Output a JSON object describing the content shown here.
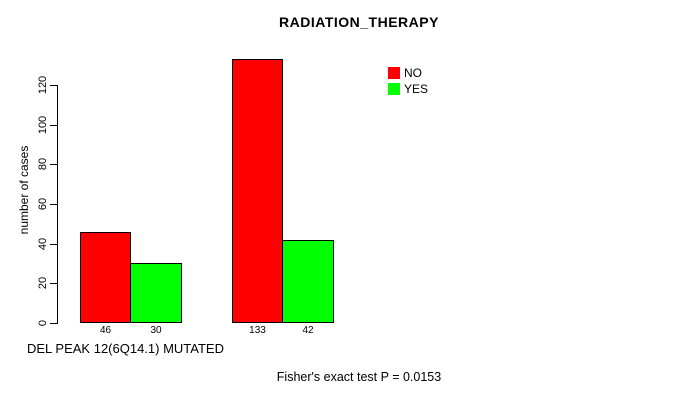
{
  "chart_data": {
    "type": "bar",
    "title": "RADIATION_THERAPY",
    "ylabel": "number of cases",
    "xlabel": "DEL PEAK 12(6Q14.1) MUTATED",
    "footnote": "Fisher's exact test P = 0.0153",
    "categories": [
      "",
      ""
    ],
    "series": [
      {
        "name": "NO",
        "color": "#ff0000",
        "values": [
          46,
          133
        ]
      },
      {
        "name": "YES",
        "color": "#00ff00",
        "values": [
          30,
          42
        ]
      }
    ],
    "bar_value_labels": [
      "46",
      "30",
      "133",
      "42"
    ],
    "y_ticks": [
      0,
      20,
      40,
      60,
      80,
      100,
      120
    ],
    "ylim": [
      0,
      140
    ],
    "grid": false,
    "legend_position": "top-right",
    "axis_color": "#000000",
    "background_color": "#ffffff"
  }
}
